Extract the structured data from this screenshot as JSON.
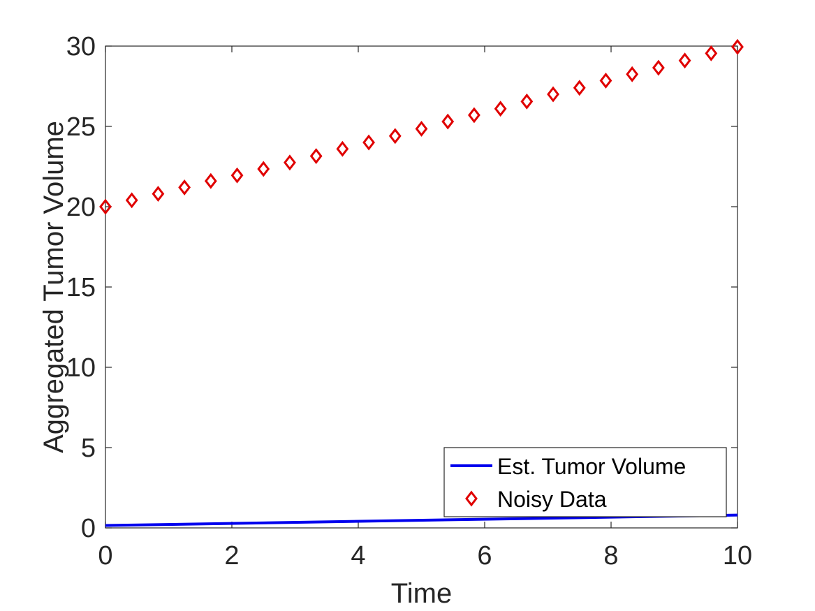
{
  "chart_data": {
    "type": "line",
    "xlabel": "Time",
    "ylabel": "Aggregated Tumor Volume",
    "xlim": [
      0,
      10
    ],
    "ylim": [
      0,
      30
    ],
    "xticks": [
      "0",
      "2",
      "4",
      "6",
      "8",
      "10"
    ],
    "yticks": [
      "0",
      "5",
      "10",
      "15",
      "20",
      "25",
      "30"
    ],
    "grid": false,
    "legend_position": "bottom-right",
    "colors": {
      "line": "#0000ee",
      "markers": "#e00000",
      "axes": "#262626"
    },
    "series": [
      {
        "name": "Est. Tumor Volume",
        "style": "line",
        "x": [
          0,
          10
        ],
        "y": [
          0.15,
          0.8
        ]
      },
      {
        "name": "Noisy Data",
        "style": "diamond-markers",
        "x": [
          0,
          0.4167,
          0.8333,
          1.25,
          1.6667,
          2.0833,
          2.5,
          2.9167,
          3.3333,
          3.75,
          4.1667,
          4.5833,
          5,
          5.4167,
          5.8333,
          6.25,
          6.6667,
          7.0833,
          7.5,
          7.9167,
          8.3333,
          8.75,
          9.1667,
          9.5833,
          10
        ],
        "y": [
          20,
          20.4,
          20.8,
          21.2,
          21.6,
          21.95,
          22.35,
          22.75,
          23.15,
          23.6,
          24.0,
          24.4,
          24.85,
          25.3,
          25.7,
          26.1,
          26.55,
          27.0,
          27.4,
          27.85,
          28.25,
          28.65,
          29.1,
          29.55,
          29.95
        ]
      }
    ]
  }
}
